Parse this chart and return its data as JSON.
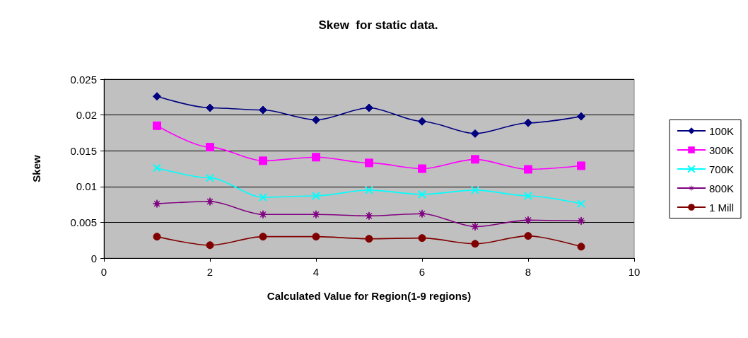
{
  "chart_data": {
    "type": "line",
    "title": "Skew  for static data.",
    "xlabel": "Calculated Value for Region(1-9 regions)",
    "ylabel": "Skew",
    "x": [
      1,
      2,
      3,
      4,
      5,
      6,
      7,
      8,
      9
    ],
    "series": [
      {
        "name": "100K",
        "color": "#000080",
        "marker": "diamond",
        "values": [
          0.0226,
          0.021,
          0.0207,
          0.0193,
          0.021,
          0.0191,
          0.0174,
          0.0189,
          0.0198
        ]
      },
      {
        "name": "300K",
        "color": "#ff00ff",
        "marker": "square",
        "values": [
          0.0185,
          0.0155,
          0.0136,
          0.0141,
          0.0133,
          0.0125,
          0.0138,
          0.0124,
          0.0129
        ]
      },
      {
        "name": "700K",
        "color": "#00ffff",
        "marker": "cross",
        "values": [
          0.0126,
          0.0112,
          0.0085,
          0.0087,
          0.0095,
          0.0089,
          0.0095,
          0.0087,
          0.0076
        ]
      },
      {
        "name": "800K",
        "color": "#800080",
        "marker": "star",
        "values": [
          0.0076,
          0.0079,
          0.0061,
          0.0061,
          0.0059,
          0.0062,
          0.0044,
          0.0053,
          0.0052
        ]
      },
      {
        "name": "1 Mill",
        "color": "#800000",
        "marker": "circle",
        "values": [
          0.003,
          0.0018,
          0.003,
          0.003,
          0.0027,
          0.0028,
          0.002,
          0.0031,
          0.0016
        ]
      }
    ],
    "xlim": [
      0,
      10
    ],
    "xticks": [
      0,
      2,
      4,
      6,
      8,
      10
    ],
    "ylim": [
      0,
      0.025
    ],
    "yticks": [
      0,
      0.005,
      0.01,
      0.015,
      0.02,
      0.025
    ],
    "grid": "y",
    "legend": "right"
  }
}
